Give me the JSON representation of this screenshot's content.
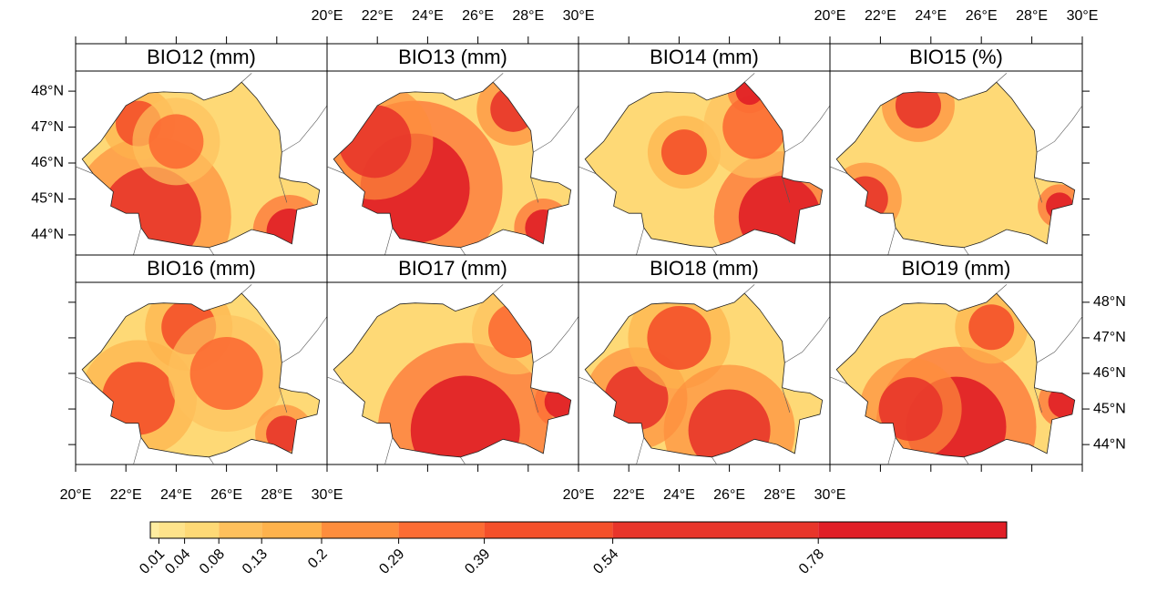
{
  "panels": [
    {
      "title": "BIO12 (mm)"
    },
    {
      "title": "BIO13 (mm)"
    },
    {
      "title": "BIO14 (mm)"
    },
    {
      "title": "BIO15 (%)"
    },
    {
      "title": "BIO16 (mm)"
    },
    {
      "title": "BIO17 (mm)"
    },
    {
      "title": "BIO18 (mm)"
    },
    {
      "title": "BIO19 (mm)"
    }
  ],
  "x_axis": {
    "lim": [
      20,
      30
    ],
    "ticks": [
      {
        "value": 20,
        "label": "20°E"
      },
      {
        "value": 22,
        "label": "22°E"
      },
      {
        "value": 24,
        "label": "24°E"
      },
      {
        "value": 26,
        "label": "26°E"
      },
      {
        "value": 28,
        "label": "28°E"
      },
      {
        "value": 30,
        "label": "30°E"
      }
    ]
  },
  "y_axis": {
    "lim": [
      43.44,
      48.56
    ],
    "ticks": [
      {
        "value": 44,
        "label": "44°N"
      },
      {
        "value": 45,
        "label": "45°N"
      },
      {
        "value": 46,
        "label": "46°N"
      },
      {
        "value": 47,
        "label": "47°N"
      },
      {
        "value": 48,
        "label": "48°N"
      }
    ]
  },
  "colorbar": {
    "lim": [
      0,
      1
    ],
    "ticks": [
      0.01,
      0.04,
      0.08,
      0.13,
      0.2,
      0.29,
      0.39,
      0.54,
      0.78
    ],
    "colors": [
      "#ffeda0",
      "#fee38b",
      "#fed976",
      "#fec05c",
      "#feb24c",
      "#fd8d3c",
      "#fc6c33",
      "#f4502a",
      "#e8352a",
      "#e01e26"
    ]
  }
}
